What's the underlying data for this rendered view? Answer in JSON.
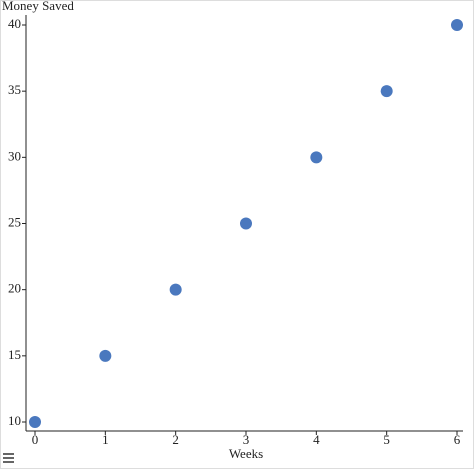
{
  "chart_data": {
    "type": "scatter",
    "title": "Money Saved",
    "x_label": "Weeks",
    "x": [
      0,
      1,
      2,
      3,
      4,
      5,
      6
    ],
    "values": [
      10,
      15,
      20,
      25,
      30,
      35,
      40
    ],
    "color": "#4a78be",
    "xlim": [
      0,
      6
    ],
    "xticks": [
      0,
      1,
      2,
      3,
      4,
      5,
      6
    ],
    "ylim": [
      10,
      40
    ],
    "yticks": [
      10,
      15,
      20,
      25,
      30,
      35,
      40
    ],
    "grid": false
  }
}
